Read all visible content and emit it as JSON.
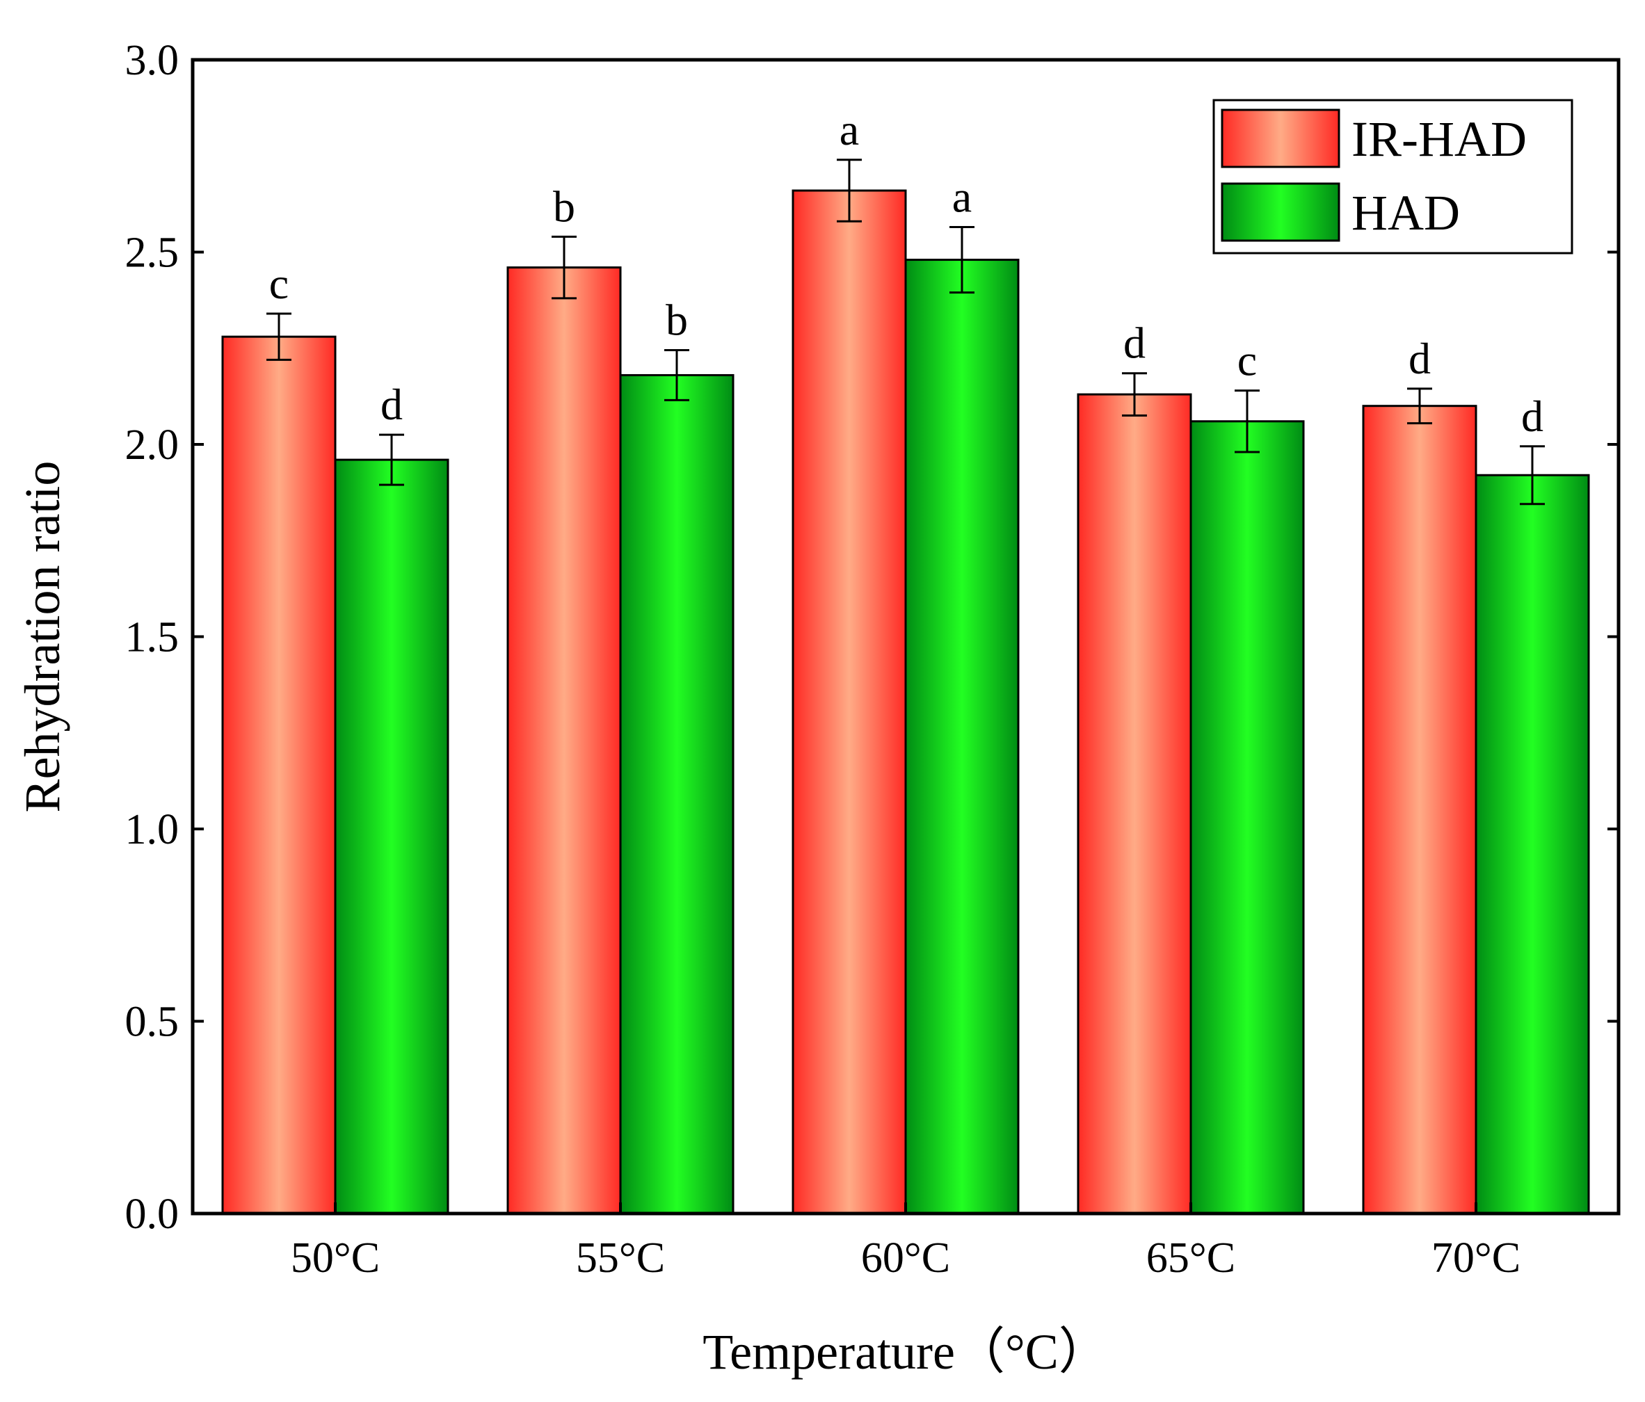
{
  "chart_data": {
    "type": "bar",
    "title": "",
    "xlabel": "Temperature（°C）",
    "ylabel": "Rehydration ratio",
    "categories": [
      "50°C",
      "55°C",
      "60°C",
      "65°C",
      "70°C"
    ],
    "ylim": [
      0,
      3.0
    ],
    "yticks": [
      "0.0",
      "0.5",
      "1.0",
      "1.5",
      "2.0",
      "2.5",
      "3.0"
    ],
    "grid": false,
    "legend_position": "top-right",
    "series": [
      {
        "name": "IR-HAD",
        "color_edge": "#ff2a24",
        "color_center": "#ffab86",
        "values": [
          2.28,
          2.46,
          2.66,
          2.13,
          2.1
        ],
        "errors": [
          0.06,
          0.08,
          0.08,
          0.055,
          0.045
        ],
        "significance": [
          "c",
          "b",
          "a",
          "d",
          "d"
        ]
      },
      {
        "name": "HAD",
        "color_edge": "#008c14",
        "color_center": "#22ff22",
        "values": [
          1.96,
          2.18,
          2.48,
          2.06,
          1.92
        ],
        "errors": [
          0.065,
          0.065,
          0.085,
          0.08,
          0.075
        ],
        "significance": [
          "d",
          "b",
          "a",
          "c",
          "d"
        ]
      }
    ]
  }
}
